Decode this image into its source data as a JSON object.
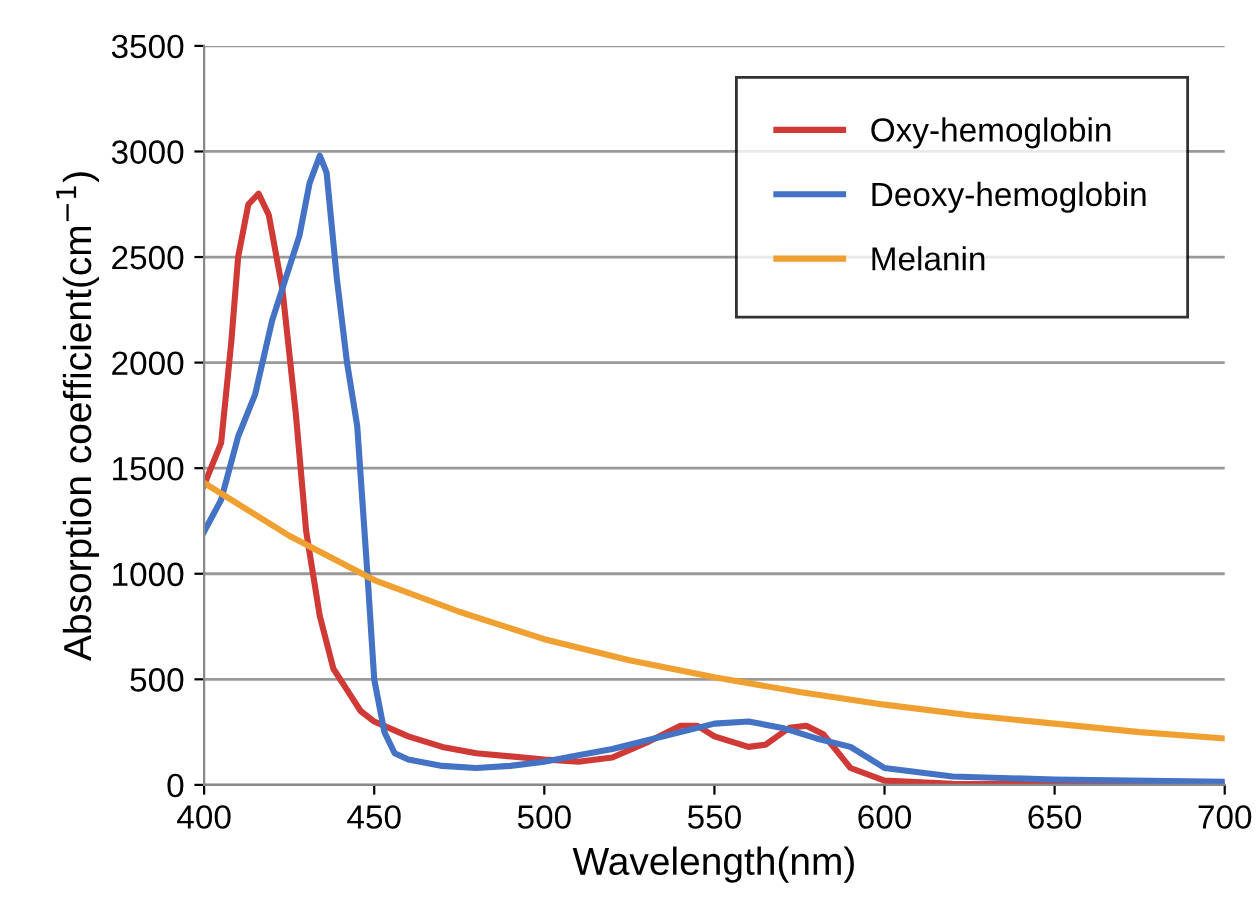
{
  "chart_data": {
    "type": "line",
    "xlabel": "Wavelength(nm)",
    "ylabel": "Absorption coefficient(cm$^{−1}$)",
    "xlim": [
      400,
      700
    ],
    "xticks": [
      400,
      450,
      500,
      550,
      600,
      650,
      700
    ],
    "ylim": [
      0,
      3500
    ],
    "yticks": [
      0,
      500,
      1000,
      1500,
      2000,
      2500,
      3000,
      3500
    ],
    "grid": "y",
    "legend": "top right",
    "marker": "none",
    "line_style": "solid",
    "series": [
      {
        "name": "Oxy-hemoglobin",
        "color": "#d03a36",
        "x": [
          400,
          405,
          408,
          410,
          413,
          416,
          419,
          423,
          427,
          430,
          434,
          438,
          442,
          446,
          450,
          460,
          470,
          480,
          500,
          510,
          520,
          530,
          540,
          545,
          550,
          560,
          565,
          572,
          577,
          582,
          590,
          600,
          620,
          650,
          700
        ],
        "values": [
          1420,
          1620,
          2100,
          2500,
          2750,
          2800,
          2700,
          2350,
          1750,
          1200,
          800,
          550,
          450,
          350,
          300,
          230,
          180,
          150,
          120,
          110,
          130,
          200,
          280,
          280,
          230,
          180,
          190,
          270,
          280,
          240,
          80,
          20,
          5,
          3,
          2
        ]
      },
      {
        "name": "Deoxy-hemoglobin",
        "color": "#4472c4",
        "x": [
          400,
          405,
          410,
          415,
          420,
          425,
          428,
          431,
          434,
          436,
          439,
          442,
          445,
          448,
          450,
          453,
          456,
          460,
          470,
          480,
          490,
          500,
          510,
          520,
          530,
          540,
          550,
          560,
          570,
          580,
          590,
          595,
          600,
          610,
          620,
          650,
          700
        ],
        "values": [
          1200,
          1350,
          1650,
          1850,
          2200,
          2450,
          2600,
          2850,
          2980,
          2900,
          2400,
          2000,
          1700,
          1000,
          500,
          250,
          150,
          120,
          90,
          80,
          90,
          110,
          140,
          170,
          210,
          250,
          290,
          300,
          270,
          220,
          180,
          130,
          80,
          60,
          40,
          25,
          15
        ]
      },
      {
        "name": "Melanin",
        "color": "#f0a030",
        "x": [
          400,
          425,
          450,
          475,
          500,
          525,
          550,
          575,
          600,
          625,
          650,
          675,
          700
        ],
        "values": [
          1430,
          1180,
          970,
          820,
          690,
          590,
          510,
          440,
          380,
          330,
          290,
          250,
          220
        ]
      }
    ]
  }
}
